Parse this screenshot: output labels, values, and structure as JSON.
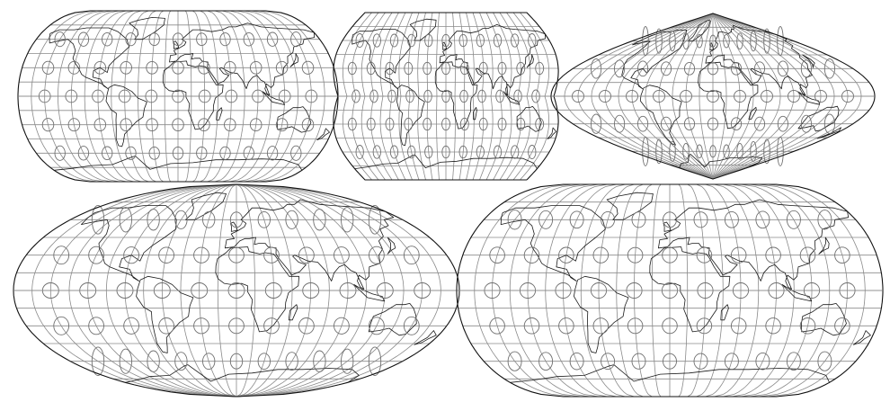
{
  "figure": {
    "colors": {
      "background": "#ffffff",
      "graticule": "#8a8a8a",
      "outline": "#111111",
      "indicatrix": "#6f6f6f",
      "coastline": "#1a1a1a"
    },
    "panels": [
      {
        "kind": "pseudocylindrical-flat-pole",
        "graticule_step_deg": 15,
        "indicatrix_step_deg": 30
      },
      {
        "kind": "pseudocylindrical-concave-sides",
        "graticule_step_deg": 15,
        "indicatrix_step_deg": 30
      },
      {
        "kind": "sinusoidal-pointed-pole",
        "graticule_step_deg": 15,
        "indicatrix_step_deg": 30
      },
      {
        "kind": "elliptical-pointed-pole",
        "graticule_step_deg": 15,
        "indicatrix_step_deg": 30
      },
      {
        "kind": "pseudocylindrical-flat-pole-wide",
        "graticule_step_deg": 15,
        "indicatrix_step_deg": 30
      }
    ]
  }
}
